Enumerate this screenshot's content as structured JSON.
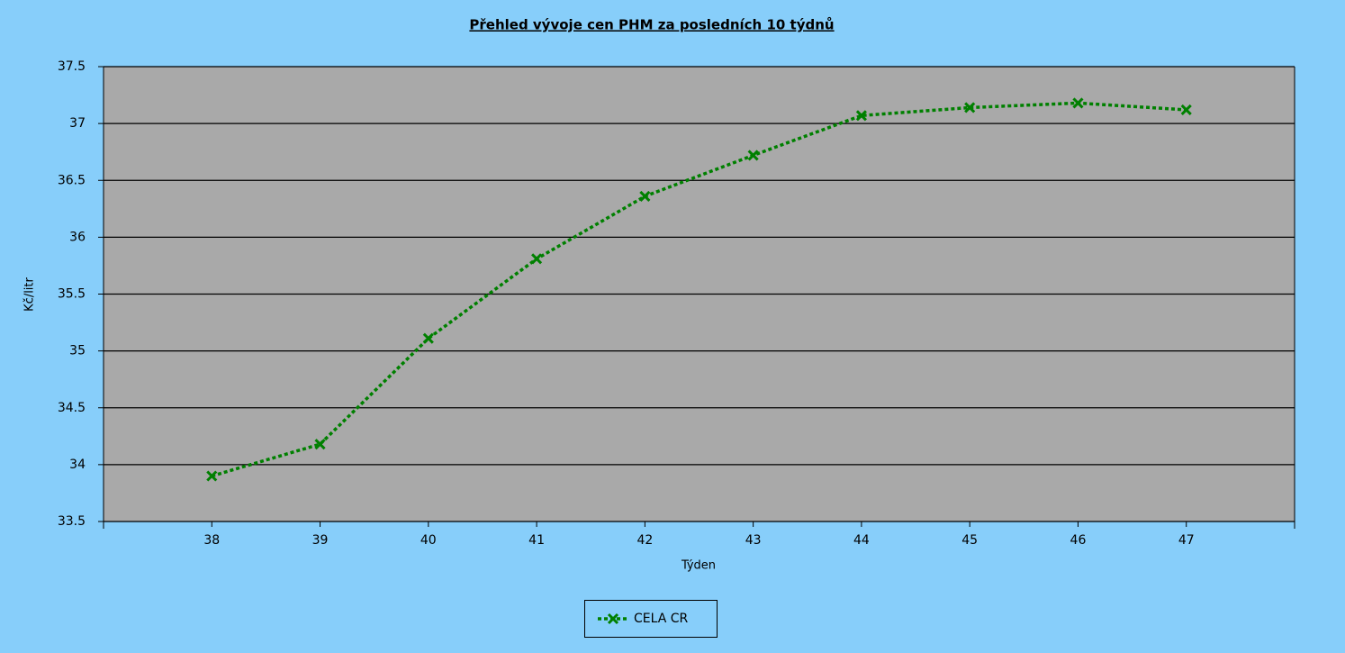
{
  "chart_data": {
    "type": "line",
    "title": "Přehled vývoje cen PHM za posledních 10 týdnů",
    "x_label": "Týden",
    "y_label": "Kč/litr",
    "categories": [
      "38",
      "39",
      "40",
      "41",
      "42",
      "43",
      "44",
      "45",
      "46",
      "47"
    ],
    "series": [
      {
        "name": "CELA CR",
        "color": "#008000",
        "values": [
          33.9,
          34.18,
          35.11,
          35.81,
          36.36,
          36.72,
          37.07,
          37.14,
          37.18,
          37.12
        ]
      }
    ],
    "ylim": [
      33.5,
      37.5
    ],
    "yticks": [
      33.5,
      34,
      34.5,
      35,
      35.5,
      36,
      36.5,
      37,
      37.5
    ],
    "grid": true
  }
}
